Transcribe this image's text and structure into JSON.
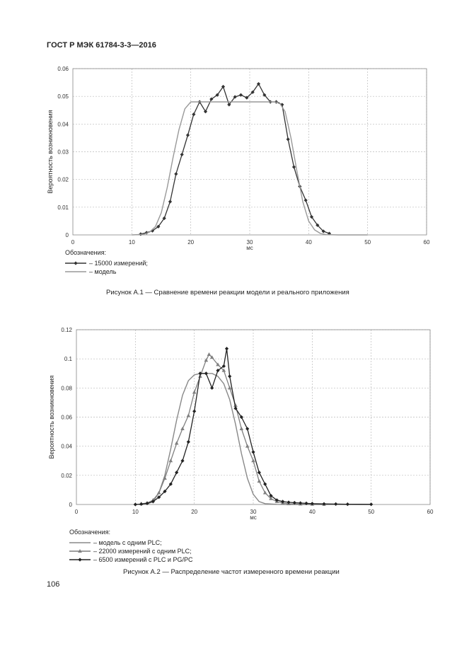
{
  "header": "ГОСТ Р МЭК 61784-3-3—2016",
  "page_number": "106",
  "chart_data": [
    {
      "type": "line",
      "title": "",
      "caption": "Рисунок А.1 — Сравнение времени реакции модели и реального приложения",
      "xlabel": "мс",
      "ylabel": "Вероятность возникновения",
      "xlim": [
        0,
        60
      ],
      "ylim": [
        0,
        0.06
      ],
      "xticks": [
        "0",
        "10",
        "20",
        "30",
        "40",
        "50",
        "60"
      ],
      "yticks": [
        "0",
        "0.01",
        "0.02",
        "0.03",
        "0.04",
        "0.05",
        "0.06"
      ],
      "grid": "dashed",
      "legend_title": "Обозначения:",
      "legend_placement": "bottom-left",
      "series": [
        {
          "name": "– 15000 измерений;",
          "color": "#333333",
          "marker": "diamond",
          "x": [
            11.5,
            12.5,
            13.5,
            14.5,
            15.5,
            16.5,
            17.5,
            18.5,
            19.5,
            20.5,
            21.5,
            22.5,
            23.5,
            24.5,
            25.5,
            26.5,
            27.5,
            28.5,
            29.5,
            30.5,
            31.5,
            32.5,
            33.5,
            34.5,
            35.5,
            36.5,
            37.5,
            38.5,
            39.5,
            40.5,
            41.5,
            42.5,
            43.5
          ],
          "y": [
            0.0003,
            0.0008,
            0.0015,
            0.003,
            0.006,
            0.012,
            0.022,
            0.029,
            0.036,
            0.0435,
            0.048,
            0.0445,
            0.049,
            0.0505,
            0.0535,
            0.047,
            0.0498,
            0.0505,
            0.0495,
            0.0515,
            0.0545,
            0.0505,
            0.048,
            0.048,
            0.047,
            0.0345,
            0.0245,
            0.0175,
            0.0125,
            0.0065,
            0.0035,
            0.0013,
            0.0005
          ]
        },
        {
          "name": "– модель",
          "color": "#999999",
          "marker": "none",
          "x": [
            10,
            12,
            13,
            14,
            15,
            16,
            17,
            18,
            19,
            20,
            21,
            22,
            24,
            26,
            28,
            30,
            32,
            34,
            35,
            36,
            37,
            38,
            39,
            40,
            41,
            42,
            43,
            45,
            50
          ],
          "y": [
            0,
            0.0002,
            0.001,
            0.003,
            0.008,
            0.017,
            0.028,
            0.038,
            0.0455,
            0.048,
            0.048,
            0.048,
            0.048,
            0.048,
            0.048,
            0.048,
            0.048,
            0.048,
            0.0478,
            0.0445,
            0.035,
            0.023,
            0.012,
            0.005,
            0.0018,
            0.0005,
            0.0001,
            0,
            0
          ]
        }
      ]
    },
    {
      "type": "line",
      "title": "",
      "caption": "Рисунок А.2 — Распределение частот измеренного времени реакции",
      "xlabel": "мс",
      "ylabel": "Вероятность возникновения",
      "xlim": [
        0,
        60
      ],
      "ylim": [
        0,
        0.12
      ],
      "xticks": [
        "0",
        "10",
        "20",
        "30",
        "40",
        "50",
        "60"
      ],
      "yticks": [
        "0",
        "0.02",
        "0.04",
        "0.06",
        "0.08",
        "0.1",
        "0.12"
      ],
      "grid": "dashed",
      "legend_title": "Обозначения:",
      "legend_placement": "bottom-left",
      "series": [
        {
          "name": "– модель с одним PLC;",
          "color": "#888888",
          "marker": "none",
          "x": [
            10,
            12,
            13,
            14,
            15,
            16,
            17,
            18,
            19,
            20,
            21,
            22,
            23,
            24,
            25,
            26,
            27,
            28,
            29,
            30,
            31,
            32,
            34,
            36,
            40,
            45,
            50
          ],
          "y": [
            0,
            0.0004,
            0.002,
            0.008,
            0.02,
            0.038,
            0.058,
            0.075,
            0.085,
            0.089,
            0.09,
            0.09,
            0.09,
            0.088,
            0.083,
            0.072,
            0.055,
            0.035,
            0.018,
            0.007,
            0.002,
            0.0006,
            0.0001,
            0,
            0,
            0,
            0
          ]
        },
        {
          "name": "– 22000 измерений с одним PLC;",
          "color": "#7f7f7f",
          "marker": "triangle",
          "x": [
            11,
            12,
            13,
            14,
            15,
            16,
            17,
            18,
            19,
            20,
            21,
            22,
            22.5,
            23,
            24,
            25,
            26,
            27,
            28,
            29,
            30,
            31,
            32,
            33,
            34,
            35,
            36,
            38,
            40,
            42
          ],
          "y": [
            0.0005,
            0.001,
            0.003,
            0.008,
            0.018,
            0.03,
            0.042,
            0.052,
            0.061,
            0.077,
            0.088,
            0.099,
            0.103,
            0.101,
            0.096,
            0.092,
            0.08,
            0.068,
            0.052,
            0.04,
            0.03,
            0.016,
            0.008,
            0.004,
            0.002,
            0.001,
            0.0005,
            0.0003,
            0.0002,
            0.0001
          ]
        },
        {
          "name": "– 6500 измерений с PLC и PG/PC",
          "color": "#222222",
          "marker": "diamond",
          "x": [
            10,
            11,
            12,
            13,
            14,
            15,
            16,
            17,
            18,
            19,
            20,
            21,
            22,
            23,
            24,
            25,
            25.5,
            26,
            27,
            28,
            29,
            30,
            31,
            32,
            33,
            34,
            35,
            36,
            37,
            38,
            39,
            40,
            42,
            44,
            46,
            50
          ],
          "y": [
            0,
            0.0003,
            0.0008,
            0.002,
            0.005,
            0.009,
            0.014,
            0.022,
            0.03,
            0.043,
            0.064,
            0.09,
            0.09,
            0.08,
            0.092,
            0.095,
            0.107,
            0.088,
            0.066,
            0.06,
            0.052,
            0.036,
            0.022,
            0.014,
            0.006,
            0.003,
            0.002,
            0.0015,
            0.0012,
            0.001,
            0.0008,
            0.0006,
            0.0004,
            0.0003,
            0.0002,
            0.0001
          ]
        }
      ]
    }
  ]
}
